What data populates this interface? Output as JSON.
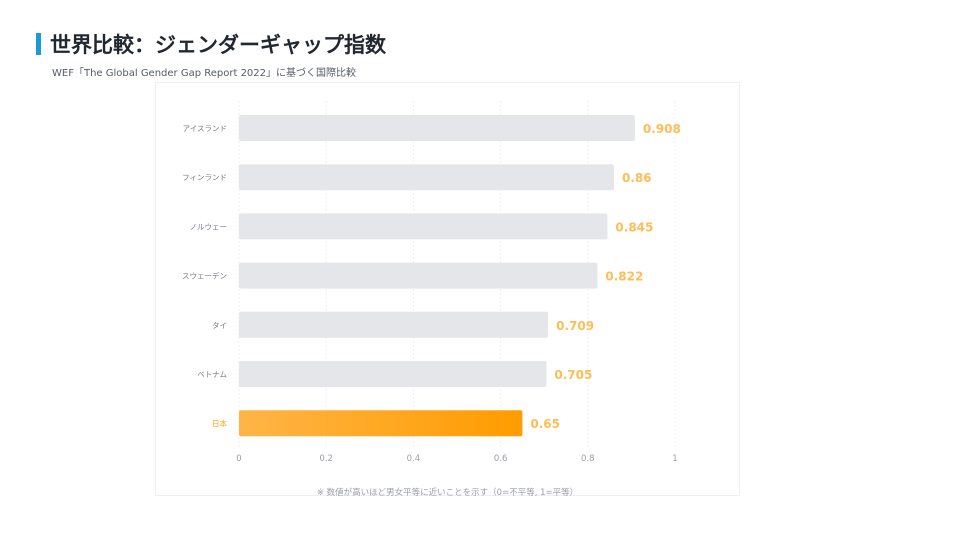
{
  "header": {
    "title": "世界比較：ジェンダーギャップ指数",
    "subtitle": "WEF「The Global Gender Gap Report 2022」に基づく国際比較"
  },
  "footnote": "※ 数値が高いほど男女平等に近いことを示す（0=不平等, 1=平等）",
  "colors": {
    "bar_default": "#e5e6ea",
    "bar_highlight_start": "#ffb547",
    "bar_highlight_end": "#ff9c00",
    "value_label": "#ffbd55",
    "highlight_label": "#ff9c00",
    "axis_label": "#777b85",
    "tick_label": "#9a9ea6",
    "grid": "#eeeff2"
  },
  "chart_data": {
    "type": "bar",
    "orientation": "horizontal",
    "title": "世界比較：ジェンダーギャップ指数",
    "xlabel": "",
    "ylabel": "",
    "categories": [
      "アイスランド",
      "フィンランド",
      "ノルウェー",
      "スウェーデン",
      "タイ",
      "ベトナム",
      "日本"
    ],
    "values": [
      0.908,
      0.86,
      0.845,
      0.822,
      0.709,
      0.705,
      0.65
    ],
    "value_labels": [
      "0.908",
      "0.86",
      "0.845",
      "0.822",
      "0.709",
      "0.705",
      "0.65"
    ],
    "highlight_category": "日本",
    "xlim": [
      0,
      1
    ],
    "x_ticks": [
      0,
      0.2,
      0.4,
      0.6,
      0.8,
      1
    ],
    "x_tick_labels": [
      "0",
      "0.2",
      "0.4",
      "0.6",
      "0.8",
      "1"
    ],
    "grid": true,
    "legend": "none"
  }
}
